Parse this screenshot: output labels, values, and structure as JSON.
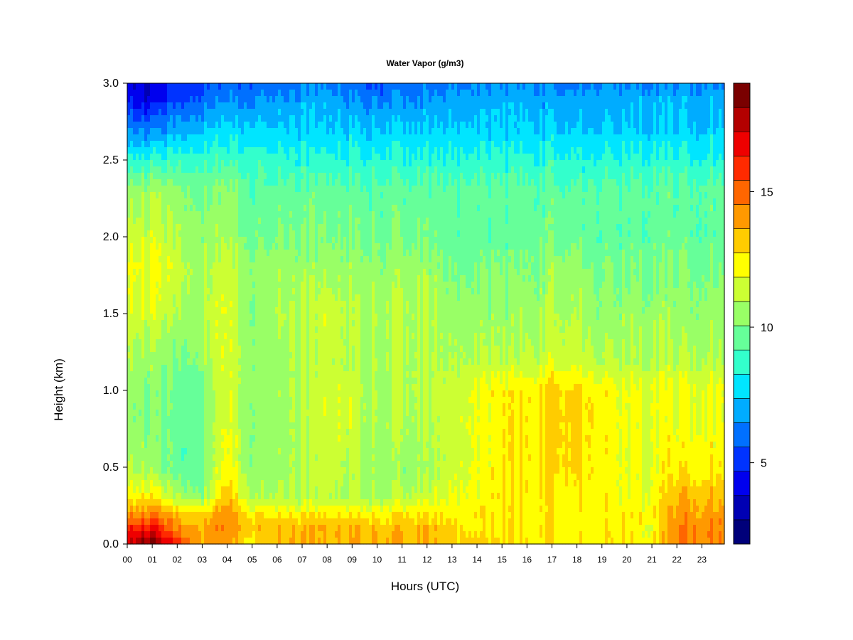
{
  "chart_data": {
    "type": "heatmap",
    "title": "Water Vapor (g/m3)",
    "xlabel": "Hours (UTC)",
    "ylabel": "Height (km)",
    "xlim": [
      0,
      23.9
    ],
    "ylim": [
      0,
      3.0
    ],
    "x_ticks": [
      "00",
      "01",
      "02",
      "03",
      "04",
      "05",
      "06",
      "07",
      "08",
      "09",
      "10",
      "11",
      "12",
      "13",
      "14",
      "15",
      "16",
      "17",
      "18",
      "19",
      "20",
      "21",
      "22",
      "23"
    ],
    "y_ticks": [
      0.0,
      0.5,
      1.0,
      1.5,
      2.0,
      2.5,
      3.0
    ],
    "y_tick_labels": [
      "0.0",
      "0.5",
      "1.0",
      "1.5",
      "2.0",
      "2.5",
      "3.0"
    ],
    "colorbar": {
      "min": 2.0,
      "max": 19.0,
      "tick_values": [
        5,
        10,
        15
      ],
      "tick_labels": [
        "5",
        "10",
        "15"
      ],
      "levels": [
        "#00007a",
        "#0000b3",
        "#0000ee",
        "#0033ff",
        "#0070ff",
        "#00acff",
        "#00e5ff",
        "#33ffcc",
        "#66ff99",
        "#99ff66",
        "#ccff33",
        "#ffff00",
        "#ffcc00",
        "#ff9900",
        "#ff6600",
        "#ff2a00",
        "#ee0000",
        "#b30000",
        "#7a0000"
      ]
    },
    "values_description_grid": {
      "heights_km": [
        0.0,
        0.1,
        0.2,
        0.3,
        0.5,
        0.8,
        1.0,
        1.2,
        1.5,
        1.8,
        2.0,
        2.3,
        2.5,
        2.7,
        2.9,
        3.0
      ],
      "hours": [
        0,
        1,
        2,
        3,
        4,
        5,
        6,
        7,
        8,
        9,
        10,
        11,
        12,
        13,
        14,
        15,
        16,
        17,
        18,
        19,
        20,
        21,
        22,
        23,
        23.9
      ],
      "values": [
        [
          17.5,
          18.5,
          16.0,
          14.0,
          14.0,
          12.5,
          13.5,
          13.8,
          13.5,
          13.8,
          13.8,
          13.8,
          13.5,
          13.0,
          13.0,
          12.5,
          12.5,
          12.5,
          12.5,
          12.5,
          12.5,
          12.5,
          14.5,
          14.5,
          14.5
        ],
        [
          16.0,
          16.5,
          14.5,
          14.0,
          14.5,
          13.5,
          13.5,
          13.5,
          13.5,
          13.5,
          13.5,
          13.5,
          13.5,
          13.0,
          12.5,
          12.5,
          12.5,
          12.5,
          12.5,
          12.5,
          12.5,
          12.0,
          14.5,
          14.5,
          14.5
        ],
        [
          14.0,
          14.5,
          13.5,
          13.0,
          14.5,
          12.5,
          12.5,
          12.5,
          12.5,
          12.5,
          12.5,
          12.5,
          12.5,
          12.5,
          12.5,
          12.5,
          12.5,
          12.5,
          12.5,
          12.5,
          12.5,
          12.5,
          14.0,
          14.0,
          14.0
        ],
        [
          12.5,
          12.5,
          11.0,
          10.5,
          13.5,
          11.0,
          11.0,
          11.0,
          11.0,
          11.0,
          11.0,
          11.0,
          11.5,
          12.0,
          12.0,
          12.5,
          12.5,
          12.5,
          12.5,
          12.5,
          12.0,
          12.0,
          13.5,
          13.5,
          13.5
        ],
        [
          11.0,
          10.5,
          9.5,
          9.8,
          12.5,
          10.5,
          10.5,
          11.0,
          11.5,
          11.0,
          10.5,
          10.5,
          10.5,
          11.5,
          12.0,
          12.5,
          12.5,
          13.0,
          13.0,
          12.5,
          12.0,
          12.0,
          12.5,
          12.5,
          12.5
        ],
        [
          10.5,
          10.0,
          9.5,
          10.0,
          12.0,
          10.5,
          10.5,
          11.0,
          11.5,
          11.5,
          11.0,
          11.0,
          11.0,
          11.5,
          12.0,
          12.5,
          12.5,
          13.0,
          13.0,
          12.5,
          12.0,
          12.0,
          12.0,
          12.0,
          12.0
        ],
        [
          10.5,
          10.0,
          9.8,
          10.2,
          12.0,
          10.5,
          10.5,
          11.0,
          11.5,
          11.5,
          11.0,
          11.0,
          11.0,
          11.5,
          12.0,
          12.5,
          12.5,
          13.0,
          13.0,
          12.5,
          12.0,
          12.0,
          12.0,
          12.0,
          12.0
        ],
        [
          10.8,
          10.5,
          10.0,
          10.5,
          12.0,
          10.5,
          10.5,
          11.0,
          11.2,
          11.0,
          11.0,
          11.0,
          11.0,
          11.0,
          11.0,
          11.0,
          11.0,
          11.5,
          11.5,
          11.0,
          11.0,
          11.0,
          11.0,
          11.0,
          11.0
        ],
        [
          11.5,
          11.5,
          11.0,
          11.0,
          12.0,
          10.5,
          11.0,
          11.0,
          11.5,
          11.0,
          11.0,
          11.0,
          11.0,
          10.5,
          10.5,
          10.5,
          10.5,
          11.0,
          11.0,
          10.5,
          10.5,
          10.5,
          10.5,
          10.5,
          10.5
        ],
        [
          12.0,
          12.0,
          11.5,
          11.0,
          11.5,
          10.5,
          10.5,
          10.5,
          10.5,
          10.5,
          10.5,
          10.5,
          10.5,
          10.0,
          10.0,
          10.0,
          10.0,
          10.5,
          10.5,
          10.0,
          10.0,
          10.0,
          10.0,
          10.0,
          10.0
        ],
        [
          11.5,
          11.5,
          11.0,
          10.5,
          11.0,
          10.0,
          10.0,
          10.0,
          10.0,
          10.0,
          10.0,
          10.0,
          9.8,
          9.5,
          9.5,
          9.5,
          9.5,
          9.8,
          9.8,
          9.5,
          9.5,
          9.5,
          9.5,
          9.5,
          9.5
        ],
        [
          10.5,
          10.5,
          10.5,
          10.0,
          10.5,
          9.5,
          9.5,
          9.5,
          9.5,
          9.5,
          9.5,
          9.5,
          9.5,
          9.5,
          9.5,
          9.5,
          9.5,
          9.5,
          9.5,
          9.5,
          9.5,
          9.5,
          9.5,
          9.5,
          9.5
        ],
        [
          8.5,
          8.5,
          9.0,
          9.0,
          9.0,
          9.0,
          8.5,
          8.5,
          8.5,
          8.5,
          8.5,
          8.5,
          8.5,
          8.5,
          8.5,
          8.5,
          8.5,
          8.5,
          8.5,
          8.5,
          8.5,
          8.5,
          8.5,
          8.5,
          8.5
        ],
        [
          6.5,
          6.2,
          7.0,
          7.5,
          7.8,
          7.8,
          7.5,
          7.5,
          7.5,
          7.5,
          7.5,
          7.5,
          7.5,
          7.5,
          7.5,
          7.5,
          7.5,
          7.5,
          7.5,
          7.5,
          7.5,
          7.5,
          7.5,
          7.5,
          7.5
        ],
        [
          4.5,
          4.0,
          5.5,
          6.0,
          6.5,
          6.5,
          6.5,
          6.8,
          6.8,
          6.5,
          6.5,
          6.5,
          6.5,
          6.8,
          6.8,
          7.0,
          7.0,
          6.8,
          6.8,
          7.0,
          7.0,
          7.0,
          7.0,
          7.0,
          7.0
        ],
        [
          4.0,
          3.5,
          5.0,
          5.5,
          6.0,
          6.0,
          6.0,
          6.3,
          6.3,
          6.0,
          5.5,
          6.0,
          6.0,
          6.3,
          6.3,
          6.5,
          6.5,
          6.3,
          6.3,
          6.5,
          6.5,
          6.5,
          6.5,
          6.5,
          6.5
        ]
      ]
    }
  }
}
